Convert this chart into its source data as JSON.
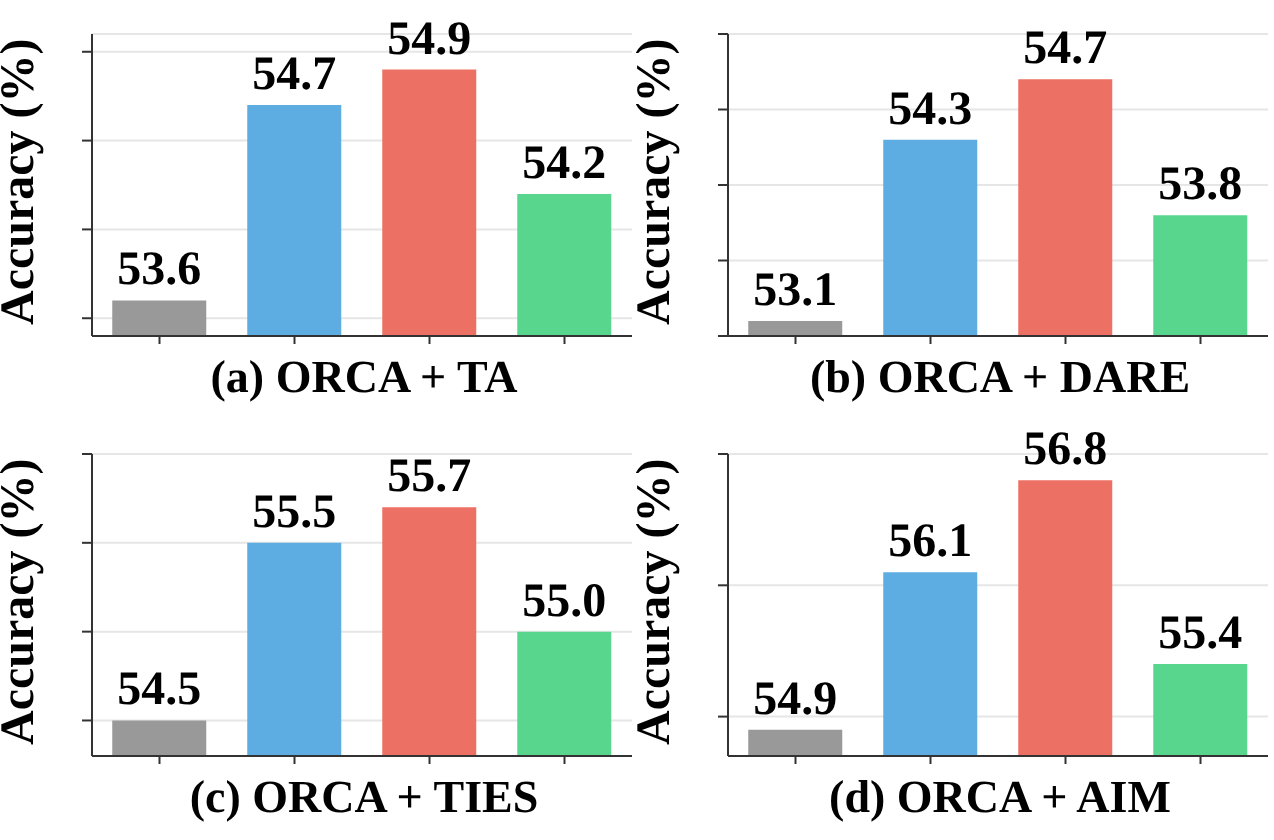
{
  "chart_data": [
    {
      "type": "bar",
      "title": "(a) ORCA + TA",
      "ylabel": "Accuracy (%)",
      "categories": [
        null,
        null,
        null,
        null
      ],
      "values": [
        53.6,
        54.7,
        54.9,
        54.2
      ],
      "value_labels": [
        "53.6",
        "54.7",
        "54.9",
        "54.2"
      ],
      "colors": [
        "#999999",
        "#5dade2",
        "#ec7063",
        "#58d68d"
      ],
      "ylim": [
        53.4,
        55.1
      ],
      "yticks": [
        {
          "value": 53.5,
          "label": null
        },
        {
          "value": 54,
          "label": null
        },
        {
          "value": 54.5,
          "label": null
        },
        {
          "value": 55,
          "label": null
        }
      ],
      "grid": "y"
    },
    {
      "type": "bar",
      "title": "(b) ORCA + DARE",
      "ylabel": "Accuracy (%)",
      "categories": [
        null,
        null,
        null,
        null
      ],
      "values": [
        53.1,
        54.3,
        54.7,
        53.8
      ],
      "value_labels": [
        "53.1",
        "54.3",
        "54.7",
        "53.8"
      ],
      "colors": [
        "#999999",
        "#5dade2",
        "#ec7063",
        "#58d68d"
      ],
      "ylim": [
        53.0,
        55.0
      ],
      "yticks": [
        {
          "value": 53,
          "label": null
        },
        {
          "value": 53.5,
          "label": null
        },
        {
          "value": 54,
          "label": null
        },
        {
          "value": 54.5,
          "label": null
        },
        {
          "value": 55,
          "label": null
        }
      ],
      "grid": "y"
    },
    {
      "type": "bar",
      "title": "(c) ORCA + TIES",
      "ylabel": "Accuracy (%)",
      "categories": [
        null,
        null,
        null,
        null
      ],
      "values": [
        54.5,
        55.5,
        55.7,
        55.0
      ],
      "value_labels": [
        "54.5",
        "55.5",
        "55.7",
        "55.0"
      ],
      "colors": [
        "#999999",
        "#5dade2",
        "#ec7063",
        "#58d68d"
      ],
      "ylim": [
        54.3,
        56.0
      ],
      "yticks": [
        {
          "value": 54.5,
          "label": null
        },
        {
          "value": 55,
          "label": null
        },
        {
          "value": 55.5,
          "label": null
        },
        {
          "value": 56,
          "label": null
        }
      ],
      "grid": "y"
    },
    {
      "type": "bar",
      "title": "(d) ORCA + AIM",
      "ylabel": "Accuracy (%)",
      "categories": [
        null,
        null,
        null,
        null
      ],
      "values": [
        54.9,
        56.1,
        56.8,
        55.4
      ],
      "value_labels": [
        "54.9",
        "56.1",
        "56.8",
        "55.4"
      ],
      "colors": [
        "#999999",
        "#5dade2",
        "#ec7063",
        "#58d68d"
      ],
      "ylim": [
        54.7,
        57.0
      ],
      "yticks": [
        {
          "value": 55,
          "label": null
        },
        {
          "value": 56,
          "label": null
        },
        {
          "value": 57,
          "label": null
        }
      ],
      "grid": "y"
    }
  ]
}
